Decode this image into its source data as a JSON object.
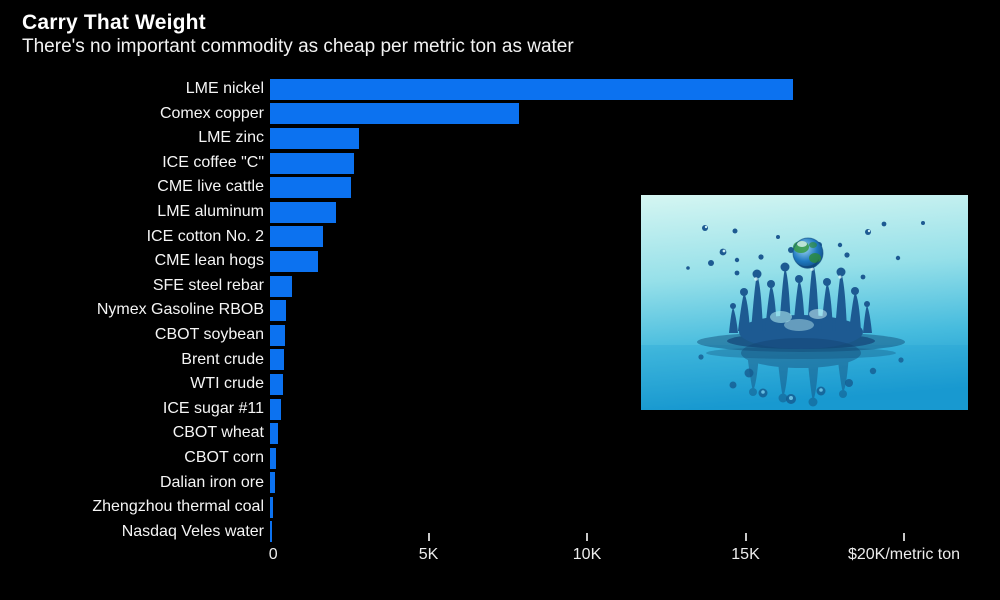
{
  "chart_data": {
    "type": "bar",
    "orientation": "horizontal",
    "title": "Carry That Weight",
    "subtitle": "There's no important commodity as cheap per metric ton as water",
    "categories": [
      "LME nickel",
      "Comex copper",
      "LME zinc",
      "ICE coffee \"C\"",
      "CME live cattle",
      "LME aluminum",
      "ICE cotton No. 2",
      "CME lean hogs",
      "SFE steel rebar",
      "Nymex Gasoline RBOB",
      "CBOT soybean",
      "Brent crude",
      "WTI crude",
      "ICE sugar #11",
      "CBOT wheat",
      "CBOT corn",
      "Dalian iron ore",
      "Zhengzhou thermal coal",
      "Nasdaq Veles water"
    ],
    "values": [
      16500,
      7850,
      2820,
      2660,
      2560,
      2080,
      1670,
      1520,
      680,
      500,
      470,
      440,
      410,
      350,
      240,
      195,
      160,
      110,
      55
    ],
    "unit": "$ per metric ton",
    "xlim": [
      0,
      20000
    ],
    "x_axis_ticks": [
      "0",
      "5K",
      "10K",
      "15K",
      "$20K/metric ton"
    ],
    "x_tick_values": [
      0,
      5000,
      10000,
      15000,
      20000
    ],
    "bar_color": "#0c72f0",
    "background_color": "#000000",
    "text_color": "#ffffff",
    "grid": false,
    "legend": false
  },
  "photo": {
    "name": "water-splash-photo",
    "subject": "water crown splash with earth-like droplet",
    "colors": {
      "sky_top": "#d2f4f1",
      "water_bottom": "#1697cf",
      "splash": "#1d5a92"
    }
  }
}
